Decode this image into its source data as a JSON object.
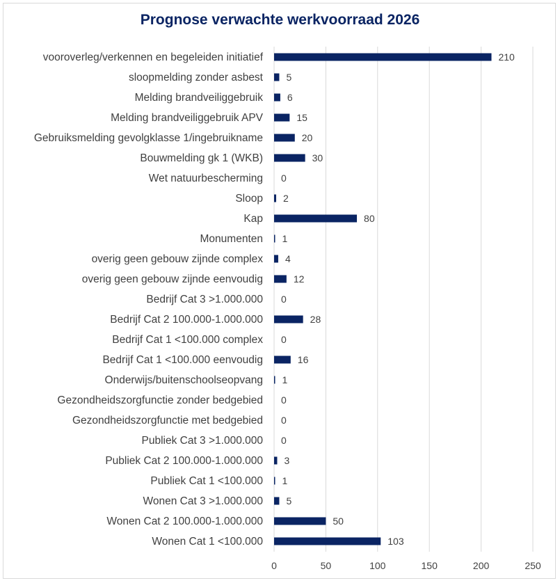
{
  "chart_data": {
    "type": "bar",
    "orientation": "horizontal",
    "title": "Prognose verwachte werkvoorraad 2026",
    "xlabel": "",
    "ylabel": "",
    "xlim": [
      0,
      250
    ],
    "xticks": [
      0,
      50,
      100,
      150,
      200,
      250
    ],
    "grid": true,
    "legend": "none",
    "bar_color": "#0a2463",
    "categories": [
      "vooroverleg/verkennen en begeleiden initiatief",
      "sloopmelding zonder asbest",
      "Melding brandveiliggebruik",
      "Melding  brandveiliggebruik APV",
      "Gebruiksmelding gevolgklasse 1/ingebruikname",
      "Bouwmelding gk 1 (WKB)",
      "Wet natuurbescherming",
      "Sloop",
      "Kap",
      "Monumenten",
      "overig geen gebouw zijnde complex",
      "overig geen gebouw zijnde eenvoudig",
      "Bedrijf Cat 3 >1.000.000",
      "Bedrijf Cat 2 100.000-1.000.000",
      "Bedrijf Cat 1 <100.000 complex",
      "Bedrijf Cat 1 <100.000 eenvoudig",
      "Onderwijs/buitenschoolseopvang",
      "Gezondheidszorgfunctie zonder bedgebied",
      "Gezondheidszorgfunctie met bedgebied",
      "Publiek Cat 3 >1.000.000",
      "Publiek Cat 2 100.000-1.000.000",
      "Publiek Cat 1 <100.000",
      "Wonen Cat 3 >1.000.000",
      "Wonen Cat 2 100.000-1.000.000",
      "Wonen Cat 1 <100.000"
    ],
    "values": [
      210,
      5,
      6,
      15,
      20,
      30,
      0,
      2,
      80,
      1,
      4,
      12,
      0,
      28,
      0,
      16,
      1,
      0,
      0,
      0,
      3,
      1,
      5,
      50,
      103
    ]
  }
}
